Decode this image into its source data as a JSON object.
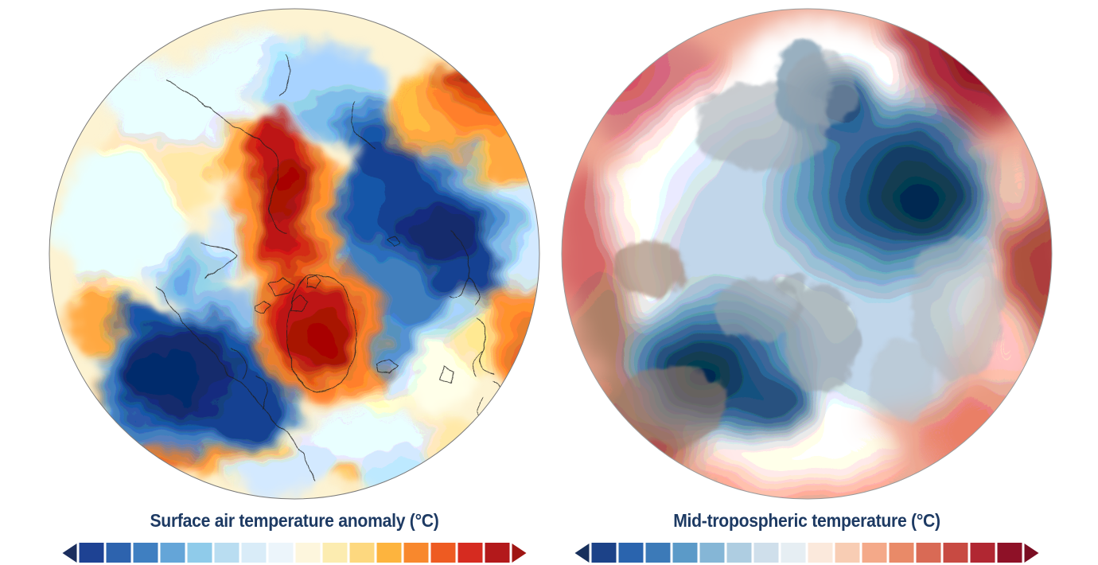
{
  "figure": {
    "background": "#ffffff",
    "theme": {
      "title_color": "#1d3a63",
      "map_outline_color": "#8a8a8a"
    },
    "panels": [
      {
        "name": "surface-air-temperature-anomaly",
        "title": "Surface air temperature anomaly (°C)",
        "colorbar": {
          "left_arrow_color": "#1b2e5e",
          "right_arrow_color": "#9f1513",
          "swatches": [
            "#1e4293",
            "#2d63ae",
            "#3f7fc1",
            "#64a5d8",
            "#8fcbea",
            "#b9ddf1",
            "#d9ecf8",
            "#ecf5fb",
            "#fdf6dd",
            "#fcecb0",
            "#fdd87f",
            "#fdb43e",
            "#f8882d",
            "#ee5b22",
            "#d62b20",
            "#b3191b"
          ]
        }
      },
      {
        "name": "mid-tropospheric-temperature",
        "title": "Mid-tropospheric temperature (°C)",
        "colorbar": {
          "left_arrow_color": "#17305c",
          "right_arrow_color": "#7a0d22",
          "swatches": [
            "#1c4288",
            "#2a64ae",
            "#3c7ab8",
            "#5b9ac8",
            "#85b6d6",
            "#aecde1",
            "#cfdfeb",
            "#e6eef3",
            "#fbe9dc",
            "#f8cdb4",
            "#f4a989",
            "#e98a68",
            "#d96a55",
            "#c84a42",
            "#b12732",
            "#8e1127"
          ]
        }
      }
    ]
  }
}
